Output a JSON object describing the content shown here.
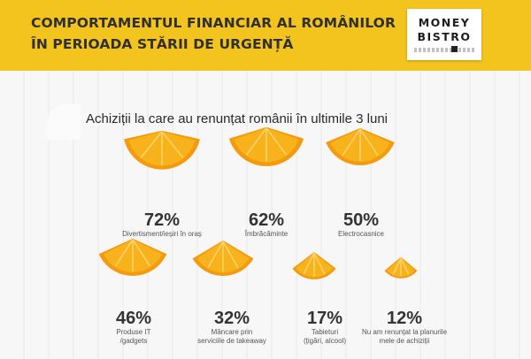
{
  "header": {
    "title_line1": "COMPORTAMENTUL FINANCIAR AL ROMÂNILOR",
    "title_line2": "ÎN PERIOADA STĂRII DE URGENȚĂ",
    "background_color": "#f4c41e",
    "logo": {
      "line1": "MONEY",
      "line2": "BISTRO"
    }
  },
  "colors": {
    "orange_peel": "#f39a0e",
    "orange_flesh": "#f7b21c",
    "text": "#333333"
  },
  "chart_data": {
    "type": "bar",
    "title": "Achiziții la care au renunțat românii în ultimile 3 luni",
    "unit": "%",
    "items": [
      {
        "value": 72,
        "label": "72%",
        "caption": [
          "Divertisment/ieșiri în oraș"
        ]
      },
      {
        "value": 62,
        "label": "62%",
        "caption": [
          "Îmbrăcăminte"
        ]
      },
      {
        "value": 50,
        "label": "50%",
        "caption": [
          "Electrocasnice"
        ]
      },
      {
        "value": 46,
        "label": "46%",
        "caption": [
          "Produse IT",
          "/gadgets"
        ]
      },
      {
        "value": 32,
        "label": "32%",
        "caption": [
          "Mâncare prin",
          "serviciile de takeaway"
        ]
      },
      {
        "value": 17,
        "label": "17%",
        "caption": [
          "Tabieturi",
          "(țigări, alcool)"
        ]
      },
      {
        "value": 12,
        "label": "12%",
        "caption": [
          "Nu am renunțat la planurile",
          "mele de achiziții"
        ]
      }
    ]
  }
}
